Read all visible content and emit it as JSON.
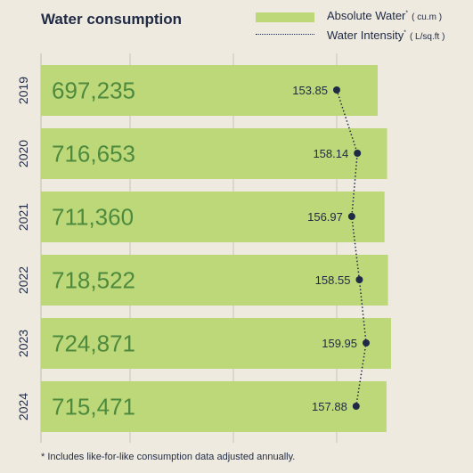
{
  "title": "Water consumption",
  "legend": {
    "absolute_label": "Absolute Water",
    "absolute_marker": "*",
    "absolute_unit": "( cu.m )",
    "intensity_label": "Water Intensity",
    "intensity_marker": "*",
    "intensity_unit": "( L/sq.ft )"
  },
  "footnote": "* Includes like-for-like consumption data adjusted annually.",
  "chart_data": {
    "type": "bar",
    "orientation": "horizontal",
    "categories": [
      "2019",
      "2020",
      "2021",
      "2022",
      "2023",
      "2024"
    ],
    "series": [
      {
        "name": "Absolute Water",
        "type": "bar",
        "values": [
          697235,
          716653,
          711360,
          718522,
          724871,
          715471
        ],
        "labels": [
          "697,235",
          "716,653",
          "711,360",
          "718,522",
          "724,871",
          "715,471"
        ],
        "color": "#bdd879"
      },
      {
        "name": "Water Intensity",
        "type": "line",
        "values": [
          153.85,
          158.14,
          156.97,
          158.55,
          159.95,
          157.88
        ],
        "labels": [
          "153.85",
          "158.14",
          "156.97",
          "158.55",
          "159.95",
          "157.88"
        ],
        "color": "#1f2a44"
      }
    ],
    "colors": {
      "bar_label": "#4e8a3e",
      "axis": "#c8c4ba",
      "text": "#1f2a44"
    },
    "grid": true,
    "legend_position": "top-right"
  }
}
